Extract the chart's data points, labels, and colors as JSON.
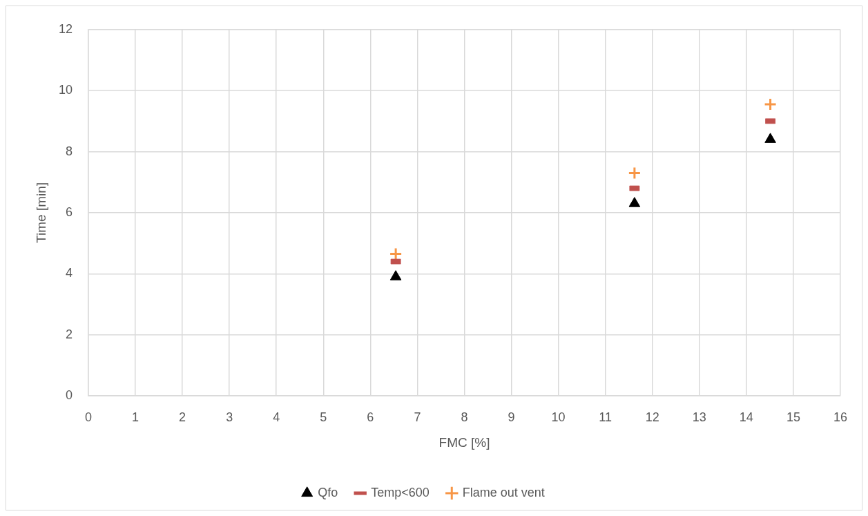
{
  "chart_data": {
    "type": "scatter",
    "xlabel": "FMC [%]",
    "ylabel": "Time [min]",
    "x": [
      6.54,
      11.62,
      14.51
    ],
    "series": [
      {
        "name": "Qfo",
        "color": "#000000",
        "marker": "triangle",
        "values": [
          3.9,
          6.3,
          8.4
        ]
      },
      {
        "name": "Temp<600",
        "color": "#c0504d",
        "marker": "square",
        "values": [
          4.4,
          6.8,
          9.0
        ]
      },
      {
        "name": "Flame out vent",
        "color": "#f79646",
        "marker": "cross",
        "values": [
          4.65,
          7.3,
          9.55
        ]
      }
    ],
    "xlim": [
      0,
      16
    ],
    "xticks": [
      0,
      1,
      2,
      3,
      4,
      5,
      6,
      7,
      8,
      9,
      10,
      11,
      12,
      13,
      14,
      15,
      16
    ],
    "ylim": [
      0,
      12
    ],
    "yticks": [
      0,
      2,
      4,
      6,
      8,
      10,
      12
    ],
    "grid": true,
    "legend": "bottom"
  }
}
